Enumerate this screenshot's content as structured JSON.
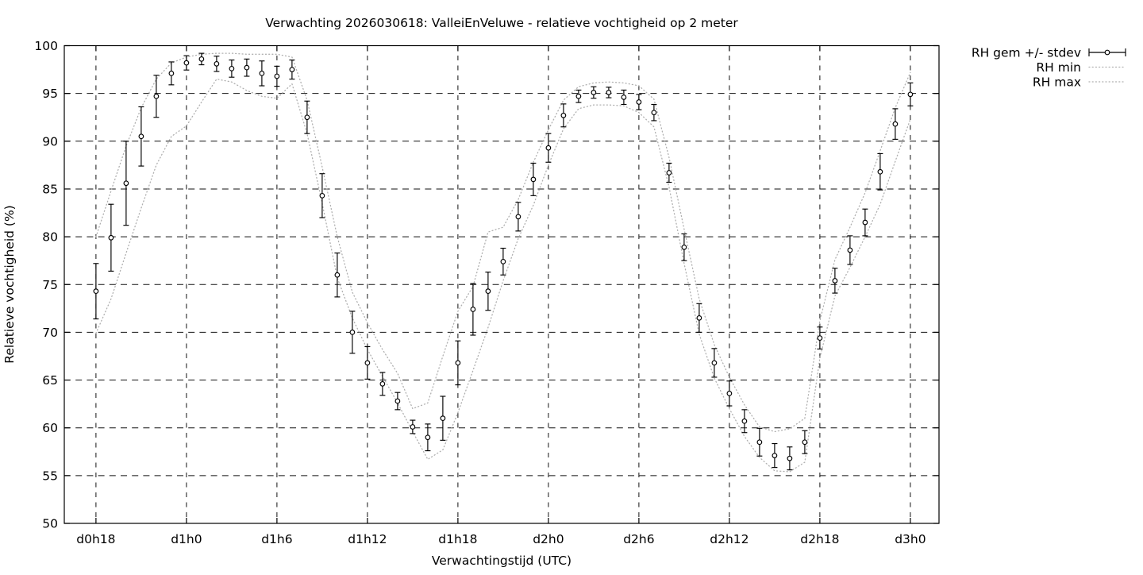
{
  "title": "Verwachting 2026030618: ValleiEnVeluwe - relatieve vochtigheid op 2 meter",
  "x_axis": {
    "label": "Verwachtingstijd (UTC)",
    "tick_hours": [
      0,
      6,
      12,
      18,
      24,
      30,
      36,
      42,
      48,
      54
    ],
    "tick_labels": [
      "d0h18",
      "d1h0",
      "d1h6",
      "d1h12",
      "d1h18",
      "d2h0",
      "d2h6",
      "d2h12",
      "d2h18",
      "d3h0"
    ]
  },
  "y_axis": {
    "label": "Relatieve vochtigheid (%)",
    "ticks": [
      50,
      55,
      60,
      65,
      70,
      75,
      80,
      85,
      90,
      95,
      100
    ]
  },
  "legend": {
    "items": [
      {
        "label": "RH gem +/- stdev",
        "style": "errorbar"
      },
      {
        "label": "RH min",
        "style": "dotted"
      },
      {
        "label": "RH max",
        "style": "dotted"
      }
    ]
  },
  "colors": {
    "data": "#000000",
    "grid": "#111111",
    "minmax": "#b0b0b0",
    "background": "#ffffff"
  },
  "chart_data": {
    "type": "line",
    "title": "Verwachting 2026030618: ValleiEnVeluwe - relatieve vochtigheid op 2 meter",
    "xlabel": "Verwachtingstijd (UTC)",
    "ylabel": "Relatieve vochtigheid (%)",
    "ylim": [
      50,
      100
    ],
    "xlim_hours": [
      -2.1,
      55.9
    ],
    "grid": true,
    "legend_position": "outside-top-right",
    "x_unit": "hours, 0 = d0h18, hourly steps",
    "series": [
      {
        "name": "RH gem",
        "values": [
          74.3,
          79.9,
          85.6,
          90.5,
          94.7,
          97.1,
          98.2,
          98.6,
          98.1,
          97.6,
          97.7,
          97.1,
          96.8,
          97.5,
          92.5,
          84.3,
          76.0,
          70.0,
          66.8,
          64.6,
          62.8,
          60.1,
          59.0,
          61.0,
          66.8,
          72.4,
          74.3,
          77.4,
          82.1,
          86.0,
          89.3,
          92.7,
          94.7,
          95.1,
          95.1,
          94.6,
          94.1,
          93.0,
          86.7,
          78.9,
          71.5,
          66.8,
          63.6,
          60.7,
          58.5,
          57.1,
          56.8,
          58.5,
          69.4,
          75.4,
          78.6,
          81.5,
          86.8,
          91.8,
          94.9
        ]
      },
      {
        "name": "RH stdev",
        "values": [
          2.9,
          3.5,
          4.4,
          3.1,
          2.2,
          1.2,
          0.75,
          0.6,
          0.8,
          0.9,
          0.9,
          1.3,
          1.05,
          1.0,
          1.7,
          2.3,
          2.3,
          2.2,
          1.7,
          1.2,
          0.9,
          0.7,
          1.4,
          2.3,
          2.3,
          2.7,
          2.0,
          1.4,
          1.5,
          1.7,
          1.5,
          1.2,
          0.65,
          0.6,
          0.55,
          0.75,
          0.8,
          0.85,
          1.0,
          1.4,
          1.5,
          1.5,
          1.3,
          1.2,
          1.45,
          1.25,
          1.2,
          1.2,
          1.15,
          1.3,
          1.5,
          1.4,
          1.9,
          1.6,
          1.2
        ]
      },
      {
        "name": "RH min",
        "values": [
          69.9,
          73.5,
          78.3,
          83.0,
          87.5,
          90.5,
          91.6,
          94.1,
          96.5,
          96.2,
          95.3,
          94.7,
          94.5,
          96.0,
          90.8,
          83.5,
          75.7,
          71.5,
          68.2,
          65.4,
          62.6,
          59.6,
          56.7,
          57.7,
          61.6,
          66.0,
          70.5,
          75.4,
          79.8,
          83.3,
          87.5,
          91.3,
          93.4,
          93.8,
          93.8,
          93.7,
          93.0,
          91.5,
          85.2,
          77.2,
          69.8,
          65.2,
          62.0,
          59.1,
          56.9,
          55.5,
          55.4,
          56.4,
          67.3,
          73.8,
          76.8,
          80.0,
          83.4,
          87.9,
          92.3
        ]
      },
      {
        "name": "RH max",
        "values": [
          80.0,
          84.8,
          89.5,
          93.5,
          96.5,
          98.2,
          98.8,
          99.1,
          99.2,
          99.2,
          99.1,
          99.1,
          99.1,
          98.8,
          94.3,
          87.3,
          80.0,
          74.2,
          71.0,
          68.2,
          65.7,
          62.0,
          62.6,
          67.5,
          72.2,
          74.8,
          80.5,
          81.0,
          83.9,
          87.8,
          91.2,
          94.3,
          95.7,
          96.1,
          96.2,
          96.1,
          95.8,
          94.4,
          88.3,
          80.8,
          73.5,
          68.7,
          65.3,
          62.4,
          60.1,
          59.6,
          59.9,
          61.0,
          71.2,
          77.6,
          81.0,
          84.6,
          89.0,
          93.5,
          97.2
        ]
      }
    ]
  }
}
